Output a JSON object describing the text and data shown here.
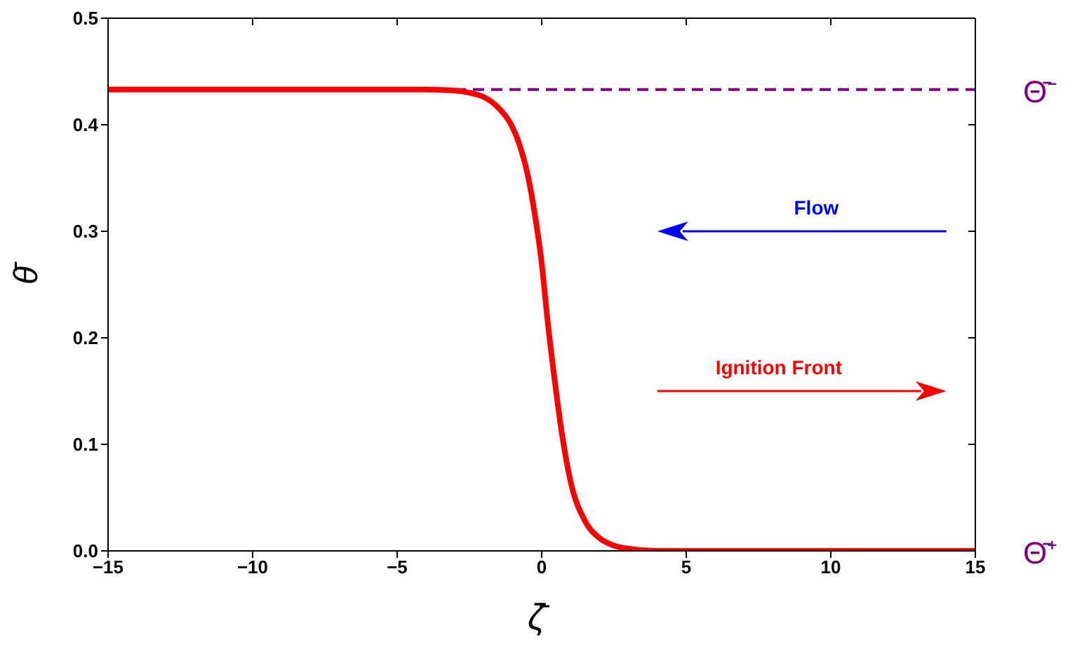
{
  "chart_data": {
    "type": "line",
    "xlabel": "ζ̄",
    "ylabel": "θ̄",
    "x": [
      -15,
      -10,
      -5,
      -4,
      -3,
      -2.5,
      -2,
      -1.5,
      -1,
      -0.75,
      -0.5,
      -0.25,
      0,
      0.2,
      0.45,
      0.7,
      1,
      1.5,
      2,
      2.5,
      3,
      4,
      5,
      10,
      15
    ],
    "series": [
      {
        "color": "#ff0000",
        "values": [
          0.433,
          0.433,
          0.433,
          0.433,
          0.432,
          0.43,
          0.426,
          0.416,
          0.397,
          0.38,
          0.355,
          0.318,
          0.27,
          0.217,
          0.16,
          0.11,
          0.065,
          0.028,
          0.012,
          0.005,
          0.002,
          0,
          0,
          0,
          0
        ]
      }
    ],
    "xlim": [
      -15,
      15
    ],
    "xticks": [
      -15,
      -10,
      -5,
      0,
      5,
      10,
      15
    ],
    "ylim": [
      0,
      0.5
    ],
    "yticks": [
      {
        "value": 0,
        "label": "0.0"
      },
      0.1,
      0.2,
      0.3,
      0.4,
      0.5
    ],
    "ref_lines": [
      {
        "axis": "y",
        "value": 0.433,
        "label": "Θ̄⁻",
        "color": "#800080",
        "line_style": "dashed"
      }
    ],
    "annotations": [
      "Flow",
      "Ignition Front",
      "Θ̄⁺"
    ],
    "marker": "none",
    "line_style": "solid"
  }
}
